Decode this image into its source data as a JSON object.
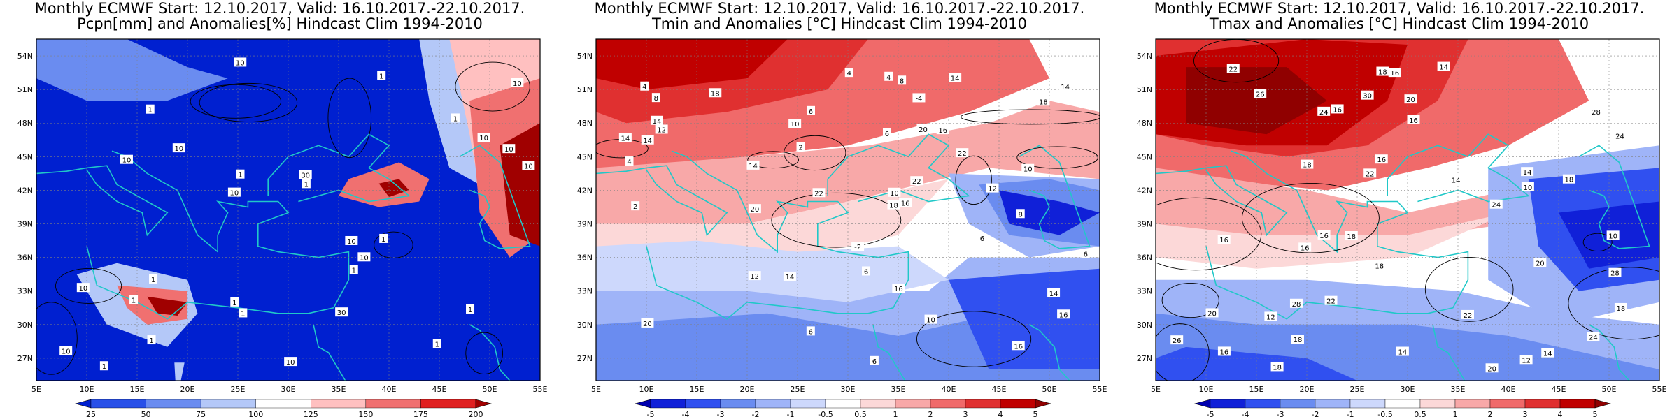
{
  "panels": [
    {
      "title_line1": "Monthly ECMWF Start: 12.10.2017, Valid: 16.10.2017.-22.10.2017.",
      "title_line2": "Pcpn[mm] and Anomalies[%] Hindcast Clim 1994-2010",
      "variable": "precipitation",
      "colorbar": {
        "labels": [
          "25",
          "50",
          "75",
          "100",
          "125",
          "150",
          "175",
          "200"
        ],
        "colors": [
          "#0020d0",
          "#2850e8",
          "#6a8cf0",
          "#b4c8f8",
          "#ffffff",
          "#ffc0c0",
          "#f07070",
          "#e02020",
          "#a00000"
        ]
      },
      "contour_labels": [
        "10",
        "10",
        "10",
        "10",
        "10",
        "1",
        "1",
        "1",
        "1",
        "1",
        "1",
        "1",
        "1",
        "10",
        "10",
        "10",
        "1",
        "1",
        "10",
        "30",
        "10",
        "1",
        "1",
        "10",
        "1",
        "10",
        "10",
        "30",
        "1",
        "1"
      ]
    },
    {
      "title_line1": "Monthly ECMWF Start: 12.10.2017, Valid: 16.10.2017.-22.10.2017.",
      "title_line2": "Tmin and Anomalies [°C] Hindcast Clim 1994-2010",
      "variable": "tmin",
      "colorbar": {
        "labels": [
          "-5",
          "-4",
          "-3",
          "-2",
          "-1",
          "-0.5",
          "0.5",
          "1",
          "2",
          "3",
          "4",
          "5"
        ],
        "colors": [
          "#0000b0",
          "#1020d8",
          "#3050f0",
          "#6a8cf0",
          "#9fb4f8",
          "#cdd8fc",
          "#ffffff",
          "#fcd8d8",
          "#f8a8a8",
          "#f06a6a",
          "#e03030",
          "#c00000",
          "#900000"
        ]
      },
      "contour_labels": [
        "6",
        "10",
        "6",
        "10",
        "8",
        "8",
        "6",
        "14",
        "8",
        "6",
        "12",
        "4",
        "2",
        "6",
        "10",
        "12",
        "14",
        "16",
        "20",
        "22",
        "20",
        "22",
        "18",
        "14",
        "6",
        "4",
        "-2",
        "-4",
        "2",
        "16",
        "22",
        "14",
        "16",
        "18",
        "20",
        "14",
        "6",
        "4",
        "4",
        "14",
        "16",
        "18",
        "12",
        "14",
        "16",
        "14",
        "10"
      ]
    },
    {
      "title_line1": "Monthly ECMWF Start: 12.10.2017, Valid: 16.10.2017.-22.10.2017.",
      "title_line2": "Tmax and Anomalies [°C] Hindcast Clim 1994-2010",
      "variable": "tmax",
      "colorbar": {
        "labels": [
          "-5",
          "-4",
          "-3",
          "-2",
          "-1",
          "-0.5",
          "0.5",
          "1",
          "2",
          "3",
          "4",
          "5"
        ],
        "colors": [
          "#0000b0",
          "#1020d8",
          "#3050f0",
          "#6a8cf0",
          "#9fb4f8",
          "#cdd8fc",
          "#ffffff",
          "#fcd8d8",
          "#f8a8a8",
          "#f06a6a",
          "#e03030",
          "#c00000",
          "#900000"
        ]
      },
      "contour_labels": [
        "16",
        "14",
        "10",
        "16",
        "16",
        "18",
        "20",
        "18",
        "16",
        "18",
        "14",
        "18",
        "22",
        "22",
        "20",
        "18",
        "12",
        "14",
        "16",
        "10",
        "14",
        "16",
        "18",
        "20",
        "22",
        "16",
        "18",
        "24",
        "22",
        "20",
        "18",
        "16",
        "14",
        "12",
        "24",
        "26",
        "28",
        "30",
        "28",
        "24",
        "24",
        "26",
        "28"
      ]
    }
  ],
  "map_axes": {
    "lat_labels": [
      "54N",
      "51N",
      "48N",
      "45N",
      "42N",
      "39N",
      "36N",
      "33N",
      "30N",
      "27N"
    ],
    "lon_labels": [
      "5E",
      "10E",
      "15E",
      "20E",
      "25E",
      "30E",
      "35E",
      "40E",
      "45E",
      "50E",
      "55E"
    ]
  }
}
